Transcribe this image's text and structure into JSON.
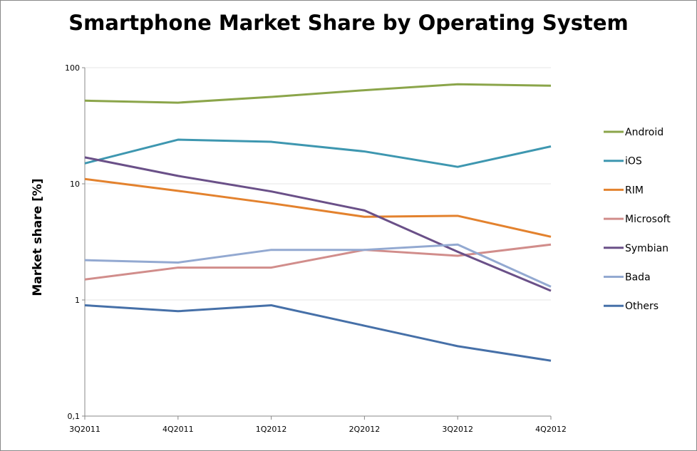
{
  "chart_data": {
    "type": "line",
    "title": "Smartphone Market Share by Operating System",
    "xlabel": "",
    "ylabel": "Market share [%]",
    "yscale": "log",
    "ylim": [
      0.1,
      100
    ],
    "yticks": [
      "0,1",
      "1",
      "10",
      "100"
    ],
    "grid": "horizontal",
    "legend_position": "right",
    "categories": [
      "3Q2011",
      "4Q2011",
      "1Q2012",
      "2Q2012",
      "3Q2012",
      "4Q2012"
    ],
    "series": [
      {
        "name": "Android",
        "color": "#8BA54A",
        "values": [
          52,
          50,
          56,
          64,
          72,
          70
        ]
      },
      {
        "name": "iOS",
        "color": "#3E97B0",
        "values": [
          15,
          24,
          23,
          19,
          14,
          21
        ]
      },
      {
        "name": "RIM",
        "color": "#E3822E",
        "values": [
          11,
          8.7,
          6.8,
          5.2,
          5.3,
          3.5
        ]
      },
      {
        "name": "Microsoft",
        "color": "#D18D8B",
        "values": [
          1.5,
          1.9,
          1.9,
          2.7,
          2.4,
          3.0
        ]
      },
      {
        "name": "Symbian",
        "color": "#6A5088",
        "values": [
          16.9,
          11.7,
          8.6,
          5.9,
          2.6,
          1.2
        ]
      },
      {
        "name": "Bada",
        "color": "#93A9D1",
        "values": [
          2.2,
          2.1,
          2.7,
          2.7,
          3.0,
          1.3
        ]
      },
      {
        "name": "Others",
        "color": "#4670A8",
        "values": [
          0.9,
          0.8,
          0.9,
          0.6,
          0.4,
          0.3
        ]
      }
    ]
  }
}
